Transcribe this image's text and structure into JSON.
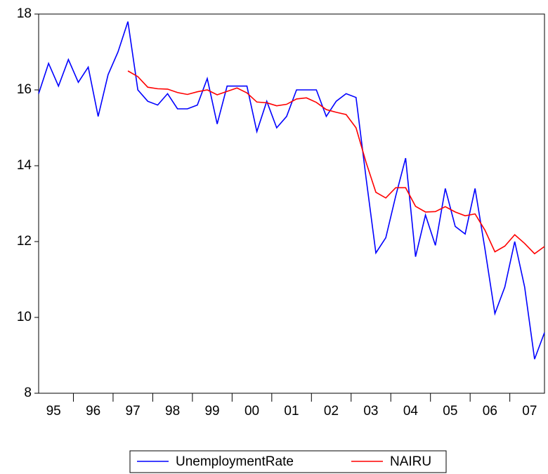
{
  "chart_data": {
    "type": "line",
    "period_labels": [
      "95",
      "96",
      "97",
      "98",
      "99",
      "00",
      "01",
      "02",
      "03",
      "04",
      "05",
      "06",
      "07"
    ],
    "periods_per_label": 4,
    "ylim": [
      8,
      18
    ],
    "yticks": [
      8,
      10,
      12,
      14,
      16,
      18
    ],
    "series": [
      {
        "name": "UnemploymentRate",
        "color": "#0000ff",
        "values": [
          15.9,
          16.7,
          16.1,
          16.8,
          16.2,
          16.6,
          15.3,
          16.4,
          17.0,
          17.8,
          16.0,
          15.7,
          15.6,
          15.9,
          15.5,
          15.5,
          15.6,
          16.3,
          15.1,
          16.1,
          16.1,
          16.1,
          14.9,
          15.7,
          15.0,
          15.3,
          16.0,
          16.0,
          16.0,
          15.3,
          15.7,
          15.9,
          15.8,
          13.7,
          11.7,
          12.1,
          13.2,
          14.2,
          11.6,
          12.7,
          11.9,
          13.4,
          12.4,
          12.2,
          13.4,
          11.8,
          10.1,
          10.8,
          12.0,
          10.8,
          8.9,
          9.6
        ]
      },
      {
        "name": "NAIRU",
        "color": "#ff0000",
        "values": [
          null,
          null,
          null,
          null,
          null,
          null,
          null,
          null,
          null,
          16.5,
          16.35,
          16.07,
          16.03,
          16.02,
          15.93,
          15.88,
          15.95,
          16.0,
          15.87,
          15.96,
          16.05,
          15.92,
          15.68,
          15.66,
          15.58,
          15.62,
          15.76,
          15.79,
          15.67,
          15.48,
          15.41,
          15.35,
          15.0,
          14.1,
          13.3,
          13.15,
          13.42,
          13.42,
          12.93,
          12.78,
          12.79,
          12.92,
          12.78,
          12.68,
          12.73,
          12.3,
          11.73,
          11.88,
          12.18,
          11.95,
          11.68,
          11.87
        ]
      }
    ]
  }
}
